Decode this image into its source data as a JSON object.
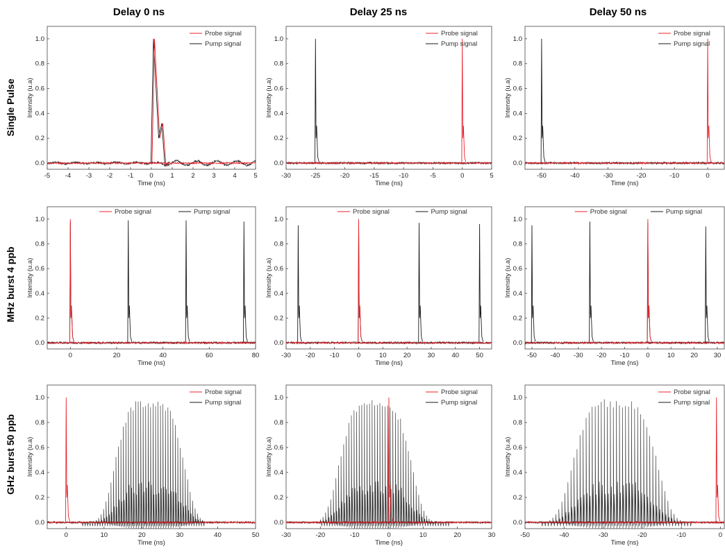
{
  "figure": {
    "column_titles": [
      "Delay 0 ns",
      "Delay 25 ns",
      "Delay 50 ns"
    ],
    "row_titles": [
      "Single Pulse",
      "MHz burst 4 ppb",
      "GHz burst 50 ppb"
    ],
    "colors": {
      "probe": "#e8202a",
      "pump": "#1a1a1a",
      "axis": "#444444"
    }
  },
  "chart_data": [
    {
      "type": "line",
      "row": 0,
      "col": 0,
      "xlabel": "Time (ns)",
      "ylabel": "Intensity (u.a)",
      "xlim": [
        -5,
        5
      ],
      "ylim": [
        -0.05,
        1.1
      ],
      "xticks": [
        -5,
        -4,
        -3,
        -2,
        -1,
        0,
        1,
        2,
        3,
        4,
        5
      ],
      "yticks": [
        0.0,
        0.2,
        0.4,
        0.6,
        0.8,
        1.0
      ],
      "legend": "top-right",
      "legend_layout": "column",
      "series": [
        {
          "name": "Probe signal",
          "role": "probe",
          "peaks": [
            {
              "t": 0.15,
              "amp": 1.0
            }
          ],
          "pulse": "single"
        },
        {
          "name": "Pump signal",
          "role": "pump",
          "peaks": [
            {
              "t": 0.1,
              "amp": 1.0
            }
          ],
          "pulse": "single"
        }
      ]
    },
    {
      "type": "line",
      "row": 0,
      "col": 1,
      "xlabel": "Time (ns)",
      "ylabel": "Intensity (u.a)",
      "xlim": [
        -30,
        5
      ],
      "ylim": [
        -0.05,
        1.1
      ],
      "xticks": [
        -30,
        -25,
        -20,
        -15,
        -10,
        -5,
        0,
        5
      ],
      "yticks": [
        0.0,
        0.2,
        0.4,
        0.6,
        0.8,
        1.0
      ],
      "legend": "top-right",
      "legend_layout": "column",
      "series": [
        {
          "name": "Probe signal",
          "role": "probe",
          "peaks": [
            {
              "t": 0,
              "amp": 1.0
            }
          ],
          "pulse": "single"
        },
        {
          "name": "Pump signal",
          "role": "pump",
          "peaks": [
            {
              "t": -25,
              "amp": 1.0
            }
          ],
          "pulse": "single"
        }
      ]
    },
    {
      "type": "line",
      "row": 0,
      "col": 2,
      "xlabel": "Time (ns)",
      "ylabel": "Intensity (u.a)",
      "xlim": [
        -55,
        5
      ],
      "ylim": [
        -0.05,
        1.1
      ],
      "xticks": [
        -50,
        -40,
        -30,
        -20,
        -10,
        0
      ],
      "yticks": [
        0.0,
        0.2,
        0.4,
        0.6,
        0.8,
        1.0
      ],
      "legend": "top-right",
      "legend_layout": "column",
      "series": [
        {
          "name": "Probe signal",
          "role": "probe",
          "peaks": [
            {
              "t": 0,
              "amp": 1.0
            }
          ],
          "pulse": "single"
        },
        {
          "name": "Pump signal",
          "role": "pump",
          "peaks": [
            {
              "t": -50,
              "amp": 1.0
            }
          ],
          "pulse": "single"
        }
      ]
    },
    {
      "type": "line",
      "row": 1,
      "col": 0,
      "xlabel": "Time (ns)",
      "ylabel": "Intensity (u.a)",
      "xlim": [
        -10,
        80
      ],
      "ylim": [
        -0.05,
        1.1
      ],
      "xticks": [
        0,
        20,
        40,
        60,
        80
      ],
      "yticks": [
        0.0,
        0.2,
        0.4,
        0.6,
        0.8,
        1.0
      ],
      "legend": "top-center",
      "legend_layout": "row",
      "series": [
        {
          "name": "Probe signal",
          "role": "probe",
          "peaks": [
            {
              "t": 0,
              "amp": 1.0
            }
          ],
          "pulse": "single"
        },
        {
          "name": "Pump signal",
          "role": "pump",
          "peaks": [
            {
              "t": 0,
              "amp": 0.98
            },
            {
              "t": 25,
              "amp": 0.99
            },
            {
              "t": 50,
              "amp": 0.99
            },
            {
              "t": 75,
              "amp": 0.98
            }
          ],
          "pulse": "single"
        }
      ]
    },
    {
      "type": "line",
      "row": 1,
      "col": 1,
      "xlabel": "Time (ns)",
      "ylabel": "Intensity (u.a)",
      "xlim": [
        -30,
        55
      ],
      "ylim": [
        -0.05,
        1.1
      ],
      "xticks": [
        -30,
        -20,
        -10,
        0,
        10,
        20,
        30,
        40,
        50
      ],
      "yticks": [
        0.0,
        0.2,
        0.4,
        0.6,
        0.8,
        1.0
      ],
      "legend": "top-center",
      "legend_layout": "row",
      "series": [
        {
          "name": "Probe signal",
          "role": "probe",
          "peaks": [
            {
              "t": 0,
              "amp": 1.0
            }
          ],
          "pulse": "single"
        },
        {
          "name": "Pump signal",
          "role": "pump",
          "peaks": [
            {
              "t": -25,
              "amp": 0.95
            },
            {
              "t": 0,
              "amp": 0.98
            },
            {
              "t": 25,
              "amp": 0.97
            },
            {
              "t": 50,
              "amp": 0.96
            }
          ],
          "pulse": "single"
        }
      ]
    },
    {
      "type": "line",
      "row": 1,
      "col": 2,
      "xlabel": "Time (ns)",
      "ylabel": "Intensity (u.a)",
      "xlim": [
        -53,
        33
      ],
      "ylim": [
        -0.05,
        1.1
      ],
      "xticks": [
        -50,
        -40,
        -30,
        -20,
        -10,
        0,
        10,
        20,
        30
      ],
      "yticks": [
        0.0,
        0.2,
        0.4,
        0.6,
        0.8,
        1.0
      ],
      "legend": "top-center",
      "legend_layout": "row",
      "series": [
        {
          "name": "Probe signal",
          "role": "probe",
          "peaks": [
            {
              "t": 0,
              "amp": 1.0
            }
          ],
          "pulse": "single"
        },
        {
          "name": "Pump signal",
          "role": "pump",
          "peaks": [
            {
              "t": -50,
              "amp": 0.95
            },
            {
              "t": -25,
              "amp": 0.98
            },
            {
              "t": 0,
              "amp": 0.97
            },
            {
              "t": 25,
              "amp": 0.94
            }
          ],
          "pulse": "single"
        }
      ]
    },
    {
      "type": "line",
      "row": 2,
      "col": 0,
      "xlabel": "Time (ns)",
      "ylabel": "Intensity (u.a)",
      "xlim": [
        -5,
        50
      ],
      "ylim": [
        -0.05,
        1.1
      ],
      "xticks": [
        0,
        10,
        20,
        30,
        40,
        50
      ],
      "yticks": [
        0.0,
        0.2,
        0.4,
        0.6,
        0.8,
        1.0
      ],
      "legend": "top-right",
      "legend_layout": "column",
      "series": [
        {
          "name": "Probe signal",
          "role": "probe",
          "peaks": [
            {
              "t": 0,
              "amp": 1.0
            }
          ],
          "pulse": "single"
        },
        {
          "name": "Pump signal",
          "role": "pump",
          "pulse": "burst",
          "burst": {
            "start": 4,
            "end": 36,
            "count": 50,
            "peak_amp": 0.99,
            "center": 22
          }
        }
      ]
    },
    {
      "type": "line",
      "row": 2,
      "col": 1,
      "xlabel": "Time (ns)",
      "ylabel": "Intensity (u.a)",
      "xlim": [
        -30,
        30
      ],
      "ylim": [
        -0.05,
        1.1
      ],
      "xticks": [
        -30,
        -20,
        -10,
        0,
        10,
        20,
        30
      ],
      "yticks": [
        0.0,
        0.2,
        0.4,
        0.6,
        0.8,
        1.0
      ],
      "legend": "top-right",
      "legend_layout": "column",
      "series": [
        {
          "name": "Probe signal",
          "role": "probe",
          "peaks": [
            {
              "t": 0,
              "amp": 1.0
            }
          ],
          "pulse": "single"
        },
        {
          "name": "Pump signal",
          "role": "pump",
          "pulse": "burst",
          "burst": {
            "start": -20,
            "end": 17,
            "count": 50,
            "peak_amp": 0.99,
            "center": -4
          }
        }
      ]
    },
    {
      "type": "line",
      "row": 2,
      "col": 2,
      "xlabel": "Time (ns)",
      "ylabel": "Intensity (u.a)",
      "xlim": [
        -50,
        1
      ],
      "ylim": [
        -0.05,
        1.1
      ],
      "xticks": [
        -50,
        -40,
        -30,
        -20,
        -10,
        0
      ],
      "yticks": [
        0.0,
        0.2,
        0.4,
        0.6,
        0.8,
        1.0
      ],
      "legend": "top-right",
      "legend_layout": "column",
      "series": [
        {
          "name": "Probe signal",
          "role": "probe",
          "peaks": [
            {
              "t": -1,
              "amp": 1.0
            }
          ],
          "pulse": "single"
        },
        {
          "name": "Pump signal",
          "role": "pump",
          "pulse": "burst",
          "burst": {
            "start": -46,
            "end": -8,
            "count": 50,
            "peak_amp": 0.99,
            "center": -27
          }
        }
      ]
    }
  ]
}
